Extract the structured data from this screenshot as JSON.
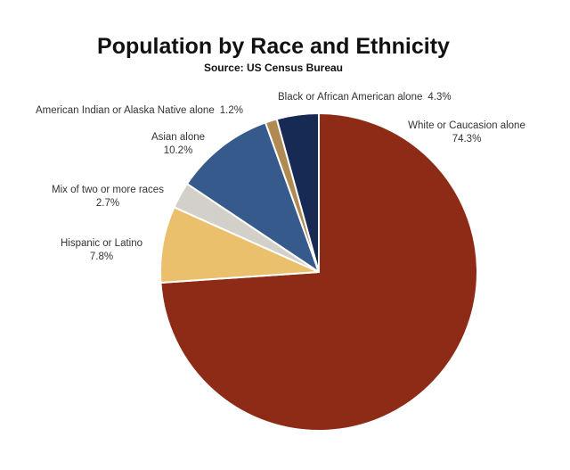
{
  "chart_data": {
    "type": "pie",
    "title": "Population by Race and Ethnicity",
    "subtitle": "Source: US Census Bureau",
    "slices": [
      {
        "label": "White or Caucasion alone",
        "value": 74.3,
        "display": "74.3%",
        "color": "#8e2b16"
      },
      {
        "label": "Hispanic or Latino",
        "value": 7.8,
        "display": "7.8%",
        "color": "#ebc06c"
      },
      {
        "label": "Mix of two or more races",
        "value": 2.7,
        "display": "2.7%",
        "color": "#d3d0ca"
      },
      {
        "label": "Asian alone",
        "value": 10.2,
        "display": "10.2%",
        "color": "#365a8c"
      },
      {
        "label": "American Indian or Alaska Native alone",
        "value": 1.2,
        "display": "1.2%",
        "color": "#b08a52"
      },
      {
        "label": "Black or African American alone",
        "value": 4.3,
        "display": "4.3%",
        "color": "#162a54"
      }
    ],
    "legend": "none"
  }
}
